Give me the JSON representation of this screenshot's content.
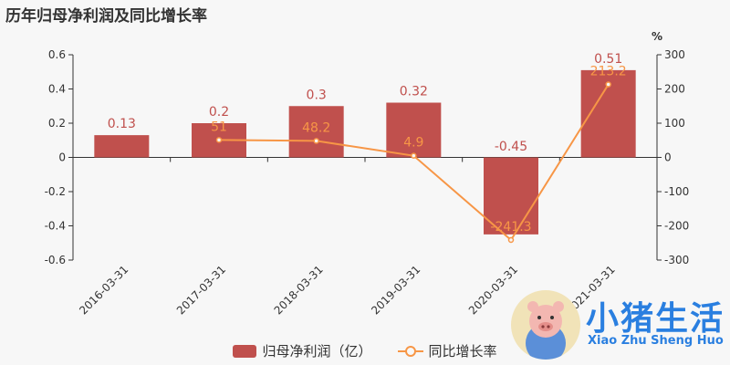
{
  "title": "历年归母净利润及同比增长率",
  "chart_data": {
    "type": "bar",
    "categories": [
      "2016-03-31",
      "2017-03-31",
      "2018-03-31",
      "2019-03-31",
      "2020-03-31",
      "2021-03-31"
    ],
    "series": [
      {
        "name": "归母净利润（亿）",
        "type": "bar",
        "axis": "left",
        "values": [
          0.13,
          0.2,
          0.3,
          0.32,
          -0.45,
          0.51
        ],
        "labels": [
          "0.13",
          "0.2",
          "0.3",
          "0.32",
          "-0.45",
          "0.51"
        ]
      },
      {
        "name": "同比增长率",
        "type": "line",
        "axis": "right",
        "values": [
          null,
          51,
          48.2,
          4.9,
          -241.3,
          213.2
        ],
        "labels": [
          "",
          "51",
          "48.2",
          "4.9",
          "-241.3",
          "213.2"
        ]
      }
    ],
    "y_left": {
      "min": -0.6,
      "max": 0.6,
      "ticks": [
        "0.6",
        "0.4",
        "0.2",
        "0",
        "-0.2",
        "-0.4",
        "-0.6"
      ]
    },
    "y_right": {
      "unit": "%",
      "min": -300,
      "max": 300,
      "ticks": [
        "300",
        "200",
        "100",
        "0",
        "-100",
        "-200",
        "-300"
      ]
    },
    "legend_position": "bottom-center",
    "colors": {
      "bar": "#c0504d",
      "line": "#f79646",
      "bar_label": "#c0504d",
      "line_label": "#f79646"
    }
  },
  "watermark": {
    "text": "小猪生活",
    "subtext": "Xiao Zhu Sheng Huo"
  }
}
